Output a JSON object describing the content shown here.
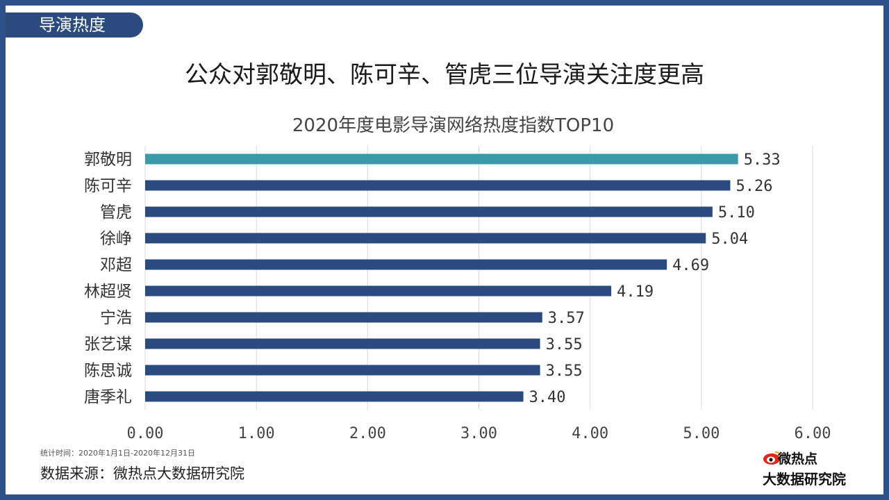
{
  "section_tab": "导演热度",
  "headline": "公众对郭敬明、陈可辛、管虎三位导演关注度更高",
  "footer": {
    "note": "统计时间：2020年1月1日-2020年12月31日",
    "source": "数据来源：微热点大数据研究院"
  },
  "logo": {
    "line1": "微热点",
    "line2": "大数据研究院",
    "icon": "weibo-eye-icon"
  },
  "colors": {
    "frame": "#2e5189",
    "bar_default": "#2b4b7f",
    "bar_highlight": "#3a9aa8",
    "gridline": "#d9d9d9"
  },
  "chart_data": {
    "type": "bar",
    "orientation": "horizontal",
    "title": "2020年度电影导演网络热度指数TOP10",
    "categories": [
      "郭敬明",
      "陈可辛",
      "管虎",
      "徐峥",
      "邓超",
      "林超贤",
      "宁浩",
      "张艺谋",
      "陈思诚",
      "唐季礼"
    ],
    "values": [
      5.33,
      5.26,
      5.1,
      5.04,
      4.69,
      4.19,
      3.57,
      3.55,
      3.55,
      3.4
    ],
    "value_labels": [
      "5.33",
      "5.26",
      "5.10",
      "5.04",
      "4.69",
      "4.19",
      "3.57",
      "3.55",
      "3.55",
      "3.40"
    ],
    "highlight_index": 0,
    "xlim": [
      0,
      6
    ],
    "xticks": [
      "0.00",
      "1.00",
      "2.00",
      "3.00",
      "4.00",
      "5.00",
      "6.00"
    ],
    "grid": true,
    "xlabel": "",
    "ylabel": ""
  }
}
